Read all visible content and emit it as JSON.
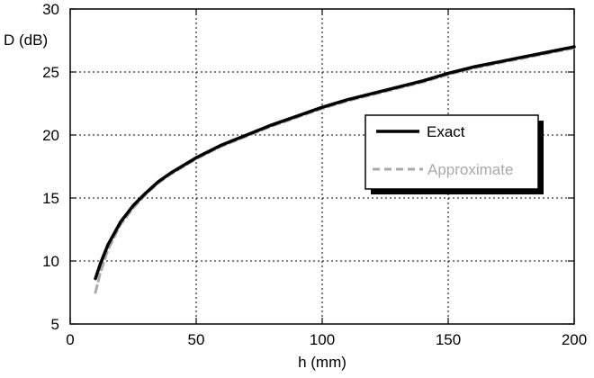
{
  "chart_data": {
    "type": "line",
    "xlabel": "h (mm)",
    "ylabel": "D (dB)",
    "xlim": [
      0,
      200
    ],
    "ylim": [
      5,
      30
    ],
    "xticks": [
      0,
      50,
      100,
      150,
      200
    ],
    "yticks": [
      5,
      10,
      15,
      20,
      25,
      30
    ],
    "grid": true,
    "legend_position": "right-center",
    "series": [
      {
        "name": "Exact",
        "color": "#000000",
        "style": "solid",
        "x": [
          10,
          12,
          15,
          20,
          25,
          30,
          35,
          40,
          50,
          60,
          70,
          80,
          90,
          100,
          110,
          120,
          130,
          140,
          150,
          160,
          170,
          180,
          190,
          200
        ],
        "y": [
          8.6,
          9.8,
          11.3,
          13.1,
          14.4,
          15.4,
          16.3,
          17.0,
          18.2,
          19.2,
          20.0,
          20.8,
          21.5,
          22.2,
          22.8,
          23.3,
          23.8,
          24.3,
          24.9,
          25.4,
          25.8,
          26.2,
          26.6,
          27.0
        ]
      },
      {
        "name": "Approximate",
        "color": "#aaaaaa",
        "style": "dashed",
        "x": [
          10,
          12,
          15,
          20,
          25,
          30,
          35,
          40,
          50,
          60,
          70,
          80,
          90,
          100,
          110,
          120,
          130,
          140,
          150,
          160,
          170,
          180,
          190,
          200
        ],
        "y": [
          7.5,
          9.1,
          10.9,
          12.9,
          14.2,
          15.3,
          16.2,
          16.9,
          18.1,
          19.1,
          19.9,
          20.7,
          21.4,
          22.1,
          22.7,
          23.2,
          23.7,
          24.2,
          24.8,
          25.3,
          25.7,
          26.1,
          26.5,
          26.9
        ]
      }
    ]
  }
}
